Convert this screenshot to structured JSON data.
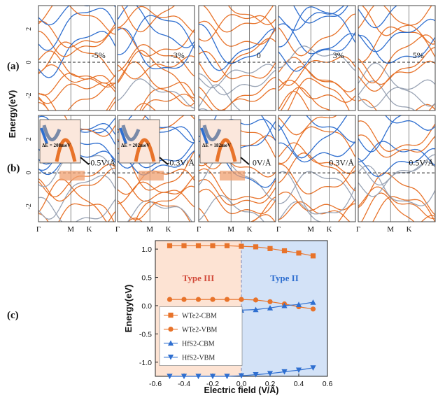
{
  "figure": {
    "panel_labels": [
      "(a)",
      "(b)",
      "(c)"
    ],
    "band_ylabel": "Energy(eV)",
    "band_yticks": [
      "2",
      "0",
      "-2"
    ],
    "kpath_labels": [
      "Γ",
      "M",
      "K"
    ],
    "colors": {
      "orange": "#e8732a",
      "blue": "#2f6fd0",
      "gray": "#9aa4b5",
      "type3_bg": "#fde3d3",
      "type2_bg": "#d3e2f7",
      "inset_fill": "#f0a070"
    }
  },
  "band_panels": {
    "row_a": [
      {
        "label": "-5%"
      },
      {
        "label": "-3%"
      },
      {
        "label": "0"
      },
      {
        "label": "3%"
      },
      {
        "label": "5%"
      }
    ],
    "row_b": [
      {
        "label": "-0.5V/Å",
        "inset": "ΔE = 208meV"
      },
      {
        "label": "-0.3V/Å",
        "inset": "ΔE = 202meV"
      },
      {
        "label": "0V/Å",
        "inset": "ΔE = 182meV"
      },
      {
        "label": "0.3V/Å"
      },
      {
        "label": "0.5V/Å"
      }
    ]
  },
  "chart_data": {
    "type": "line",
    "title": "",
    "xlabel": "Electric field (V/Å)",
    "ylabel": "Energy(eV)",
    "xlim": [
      -0.6,
      0.6
    ],
    "ylim": [
      -1.25,
      1.15
    ],
    "xticks": [
      -0.6,
      -0.4,
      -0.2,
      0.0,
      0.2,
      0.4,
      0.6
    ],
    "yticks": [
      1.0,
      0.5,
      0.0,
      -0.5,
      -1.0
    ],
    "x": [
      -0.5,
      -0.4,
      -0.3,
      -0.2,
      -0.1,
      0.0,
      0.1,
      0.2,
      0.3,
      0.4,
      0.5
    ],
    "regions": [
      {
        "label": "Type III",
        "range": [
          -0.6,
          0.0
        ],
        "color": "#fde3d3",
        "text_color": "#d24a3a"
      },
      {
        "label": "Type II",
        "range": [
          0.0,
          0.6
        ],
        "color": "#d3e2f7",
        "text_color": "#2f6fd0"
      }
    ],
    "series": [
      {
        "name": "WTe2-CBM",
        "marker": "square",
        "color": "#e8732a",
        "values": [
          1.06,
          1.06,
          1.06,
          1.06,
          1.06,
          1.05,
          1.04,
          1.01,
          0.97,
          0.93,
          0.88
        ]
      },
      {
        "name": "WTe2-VBM",
        "marker": "circle",
        "color": "#e8732a",
        "values": [
          0.11,
          0.11,
          0.11,
          0.11,
          0.11,
          0.11,
          0.1,
          0.07,
          0.03,
          -0.02,
          -0.06
        ]
      },
      {
        "name": "HfS2-CBM",
        "marker": "triangle-up",
        "color": "#2f6fd0",
        "values": [
          -0.09,
          -0.09,
          -0.09,
          -0.09,
          -0.09,
          -0.08,
          -0.07,
          -0.04,
          0.0,
          0.02,
          0.06
        ]
      },
      {
        "name": "HfS2-VBM",
        "marker": "triangle-down",
        "color": "#2f6fd0",
        "values": [
          -1.25,
          -1.25,
          -1.25,
          -1.25,
          -1.25,
          -1.24,
          -1.22,
          -1.2,
          -1.17,
          -1.14,
          -1.1
        ]
      }
    ],
    "legend": "lower-left"
  }
}
